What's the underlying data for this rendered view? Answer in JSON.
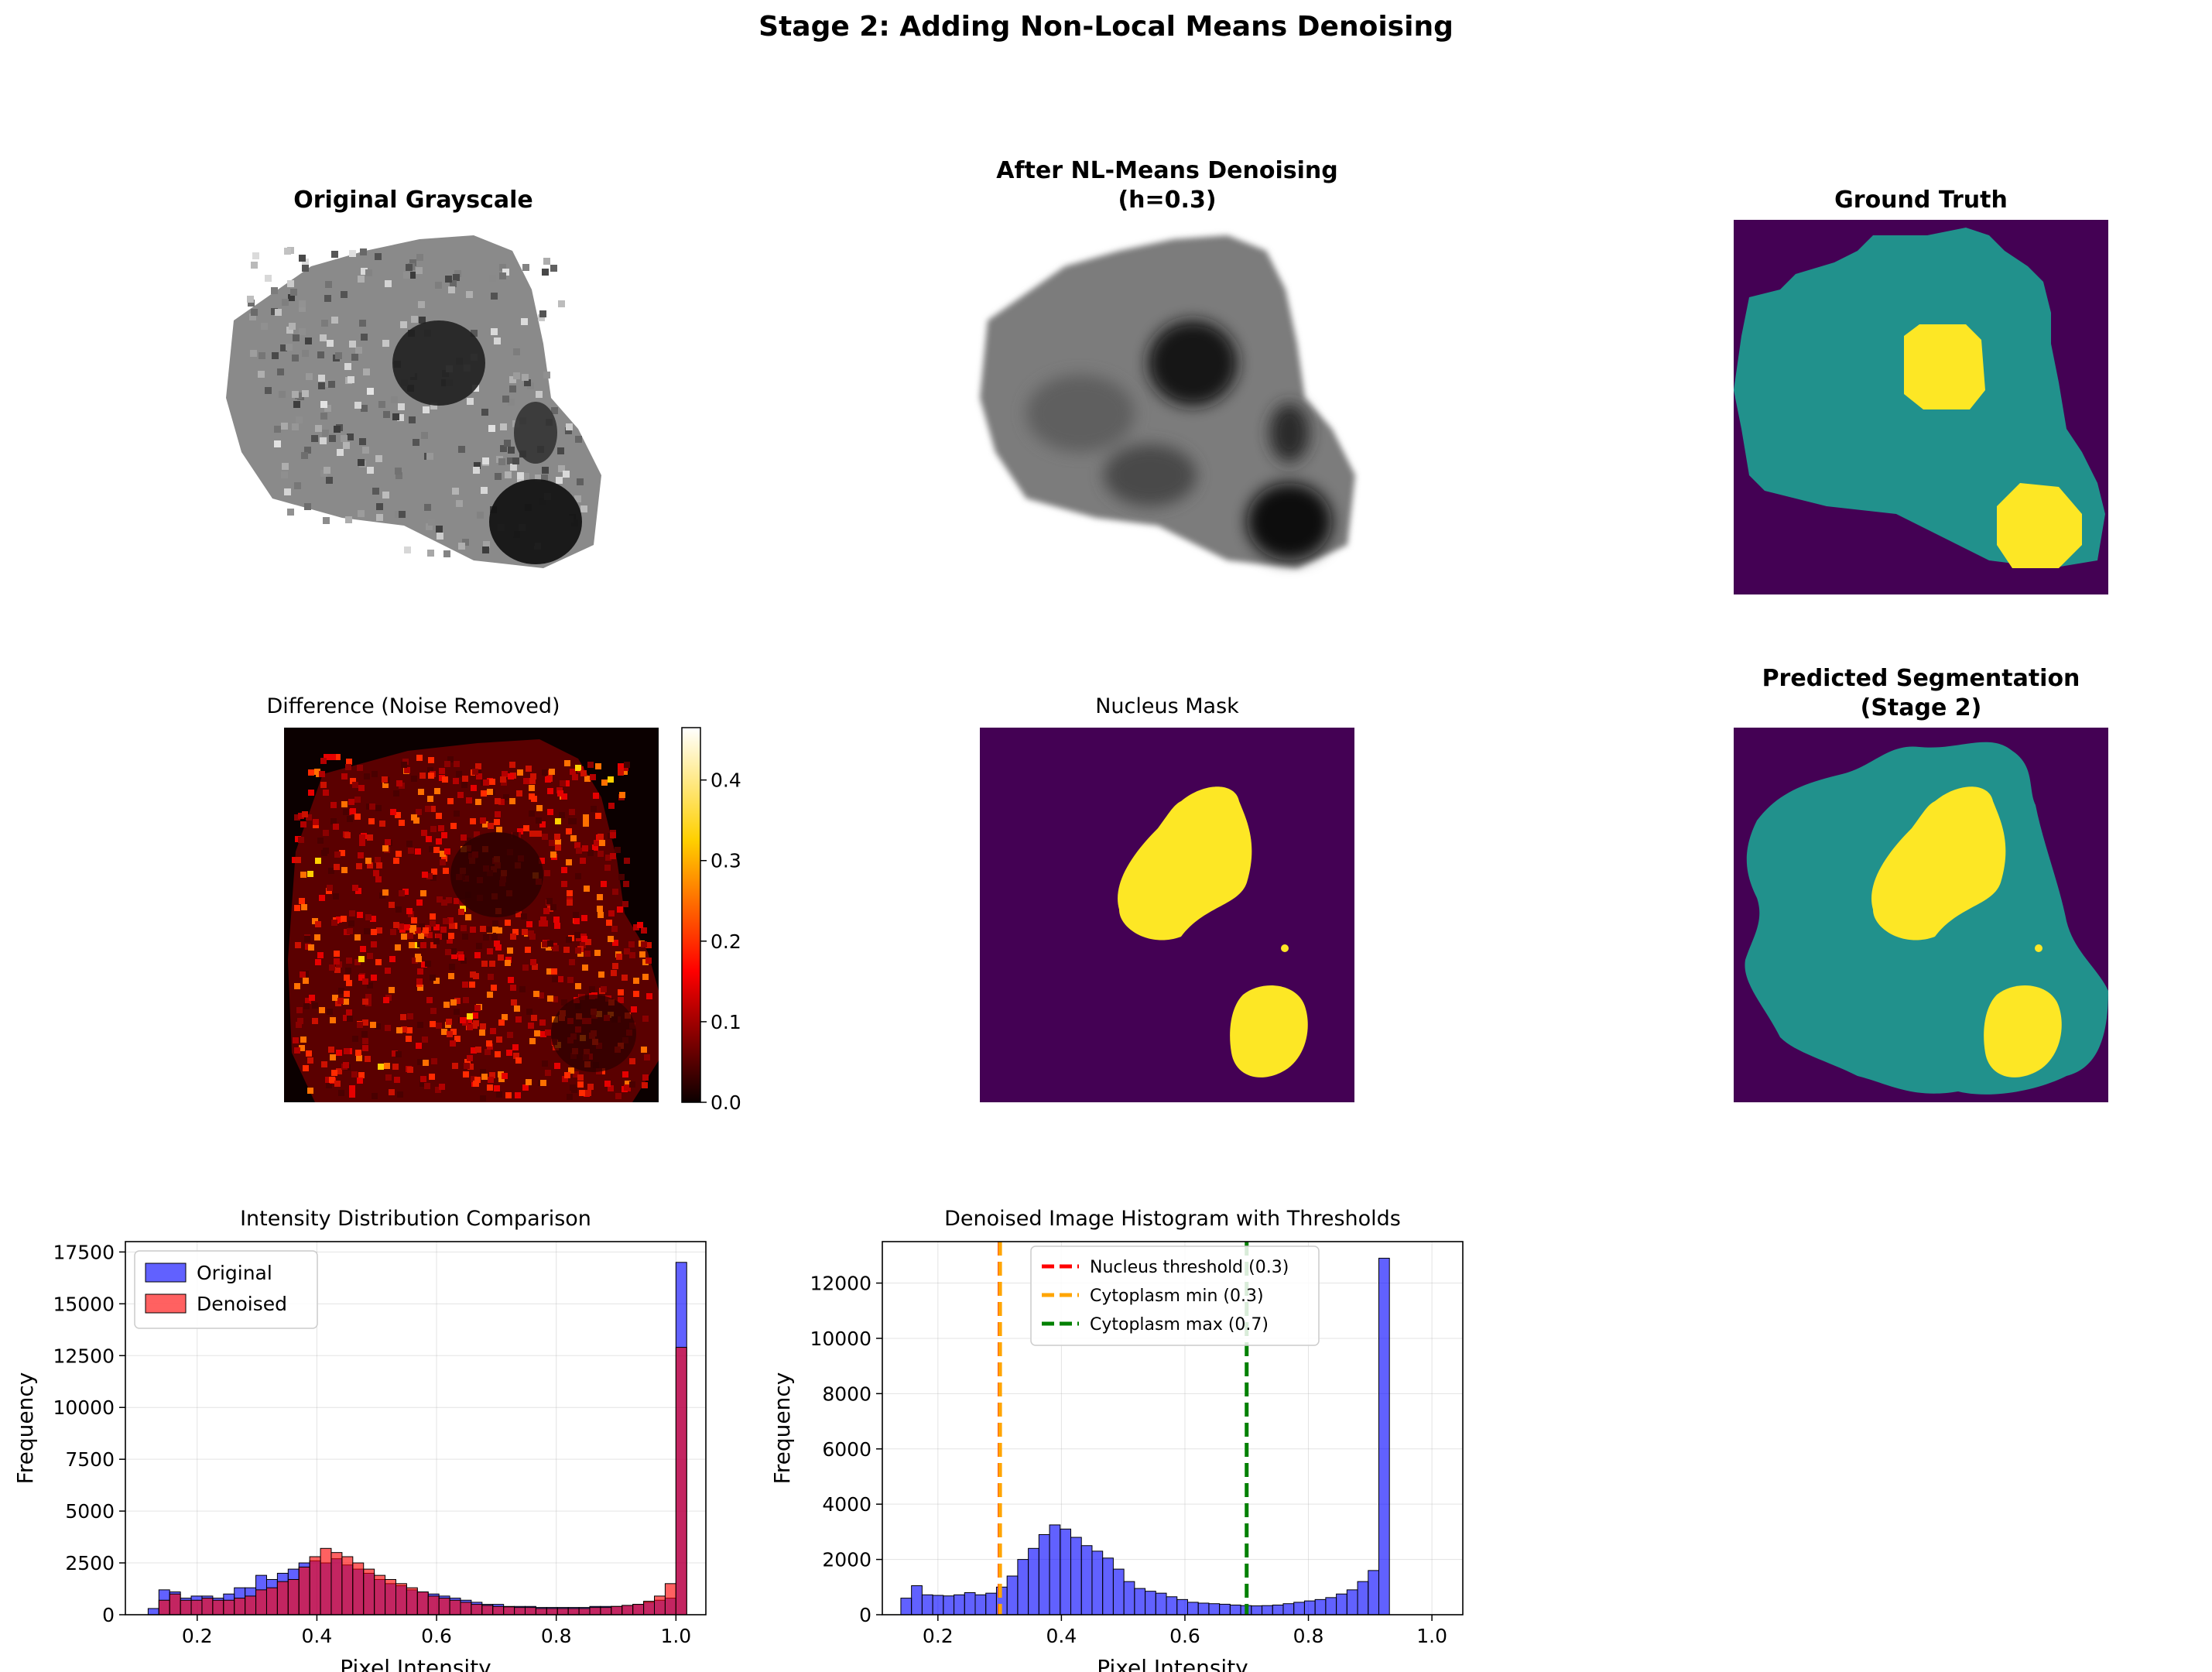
{
  "figure": {
    "suptitle": "Stage 2: Adding Non-Local Means Denoising"
  },
  "panels": {
    "original": {
      "title": "Original Grayscale"
    },
    "denoised": {
      "title_line1": "After NL-Means Denoising",
      "title_line2": "(h=0.3)"
    },
    "ground_truth": {
      "title": "Ground Truth"
    },
    "difference": {
      "title": "Difference (Noise Removed)",
      "colorbar_ticks": [
        "0.0",
        "0.1",
        "0.2",
        "0.3",
        "0.4"
      ]
    },
    "nucleus_mask": {
      "title": "Nucleus Mask"
    },
    "predicted": {
      "title_line1": "Predicted Segmentation",
      "title_line2": "(Stage 2)"
    }
  },
  "colors": {
    "viridis_bg": "#440154",
    "viridis_mid": "#21918c",
    "viridis_hi": "#fde725",
    "original_series": "#0000ff",
    "denoised_series": "#ff0000",
    "nucleus_line": "#ff0000",
    "cyto_min_line": "#ffa500",
    "cyto_max_line": "#008000"
  },
  "chart_data": [
    {
      "type": "bar",
      "title": "Intensity Distribution Comparison",
      "xlabel": "Pixel Intensity",
      "ylabel": "Frequency",
      "xlim": [
        0.08,
        1.05
      ],
      "ylim": [
        0,
        18000
      ],
      "xticks": [
        "0.2",
        "0.4",
        "0.6",
        "0.8",
        "1.0"
      ],
      "yticks": [
        "0",
        "2500",
        "5000",
        "7500",
        "10000",
        "12500",
        "15000",
        "17500"
      ],
      "bin_start": 0.1,
      "bin_width": 0.018,
      "legend_position": "upper-left",
      "series": [
        {
          "name": "Original",
          "values": [
            0,
            300,
            1200,
            1100,
            800,
            900,
            900,
            800,
            1000,
            1300,
            1300,
            1900,
            1700,
            2000,
            2200,
            2500,
            2600,
            2500,
            2700,
            2400,
            2200,
            2000,
            1700,
            1500,
            1400,
            1200,
            1100,
            1000,
            900,
            800,
            700,
            600,
            500,
            500,
            400,
            400,
            400,
            350,
            350,
            350,
            350,
            350,
            400,
            400,
            400,
            450,
            500,
            600,
            700,
            800,
            17000
          ]
        },
        {
          "name": "Denoised",
          "values": [
            0,
            0,
            700,
            1000,
            700,
            700,
            800,
            700,
            700,
            800,
            900,
            1200,
            1300,
            1600,
            1700,
            2300,
            2800,
            3200,
            3000,
            2800,
            2500,
            2200,
            1900,
            1700,
            1500,
            1300,
            1100,
            900,
            800,
            700,
            600,
            500,
            450,
            400,
            380,
            350,
            350,
            300,
            300,
            300,
            300,
            300,
            350,
            350,
            400,
            450,
            500,
            650,
            900,
            1500,
            12900
          ]
        }
      ]
    },
    {
      "type": "bar",
      "title": "Denoised Image Histogram with Thresholds",
      "xlabel": "Pixel Intensity",
      "ylabel": "Frequency",
      "xlim": [
        0.11,
        1.05
      ],
      "ylim": [
        0,
        13500
      ],
      "xticks": [
        "0.2",
        "0.4",
        "0.6",
        "0.8",
        "1.0"
      ],
      "yticks": [
        "0",
        "2000",
        "4000",
        "6000",
        "8000",
        "10000",
        "12000"
      ],
      "bin_start": 0.14,
      "bin_width": 0.0172,
      "values": [
        600,
        1050,
        720,
        700,
        680,
        720,
        800,
        720,
        780,
        1000,
        1400,
        2000,
        2400,
        2900,
        3250,
        3100,
        2800,
        2500,
        2300,
        2050,
        1650,
        1200,
        950,
        850,
        780,
        650,
        550,
        450,
        420,
        400,
        380,
        350,
        330,
        320,
        330,
        350,
        400,
        450,
        500,
        550,
        620,
        750,
        900,
        1200,
        1600,
        12900
      ],
      "thresholds": [
        {
          "label": "Nucleus threshold (0.3)",
          "x": 0.3,
          "color": "#ff0000"
        },
        {
          "label": "Cytoplasm min (0.3)",
          "x": 0.3,
          "color": "#ffa500"
        },
        {
          "label": "Cytoplasm max (0.7)",
          "x": 0.7,
          "color": "#008000"
        }
      ],
      "legend_position": "top-center"
    }
  ]
}
